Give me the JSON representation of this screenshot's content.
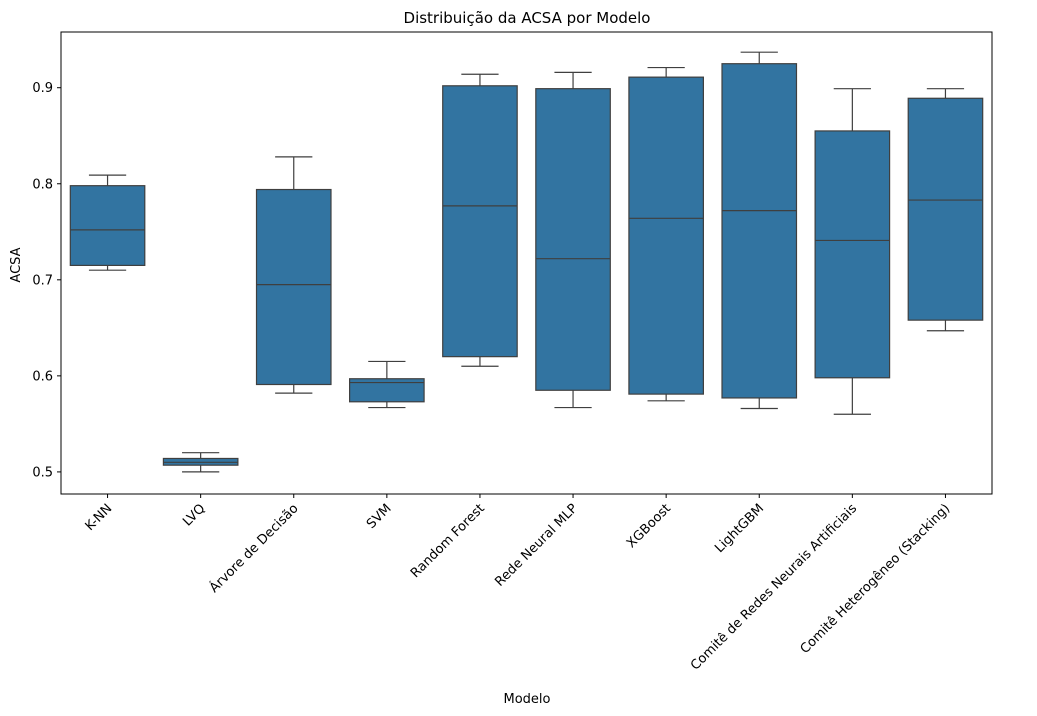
{
  "chart_data": {
    "type": "box",
    "title": "Distribuição da ACSA por Modelo",
    "xlabel": "Modelo",
    "ylabel": "ACSA",
    "ylim": [
      0.477,
      0.958
    ],
    "yticks": [
      0.5,
      0.6,
      0.7,
      0.8,
      0.9
    ],
    "ytick_labels": [
      "0.5",
      "0.6",
      "0.7",
      "0.8",
      "0.9"
    ],
    "grid": false,
    "box_color": "#3274a1",
    "line_color": "#3f3f3f",
    "categories": [
      "K-NN",
      "LVQ",
      "Árvore de Decisão",
      "SVM",
      "Random Forest",
      "Rede Neural MLP",
      "XGBoost",
      "LightGBM",
      "Comitê de Redes Neurais Artificiais",
      "Comitê Heterogêneo (Stacking)"
    ],
    "boxes": [
      {
        "whisker_low": 0.71,
        "q1": 0.715,
        "median": 0.752,
        "q3": 0.798,
        "whisker_high": 0.809
      },
      {
        "whisker_low": 0.5,
        "q1": 0.507,
        "median": 0.51,
        "q3": 0.514,
        "whisker_high": 0.52
      },
      {
        "whisker_low": 0.582,
        "q1": 0.591,
        "median": 0.695,
        "q3": 0.794,
        "whisker_high": 0.828
      },
      {
        "whisker_low": 0.567,
        "q1": 0.573,
        "median": 0.593,
        "q3": 0.597,
        "whisker_high": 0.615
      },
      {
        "whisker_low": 0.61,
        "q1": 0.62,
        "median": 0.777,
        "q3": 0.902,
        "whisker_high": 0.914
      },
      {
        "whisker_low": 0.567,
        "q1": 0.585,
        "median": 0.722,
        "q3": 0.899,
        "whisker_high": 0.916
      },
      {
        "whisker_low": 0.574,
        "q1": 0.581,
        "median": 0.764,
        "q3": 0.911,
        "whisker_high": 0.921
      },
      {
        "whisker_low": 0.566,
        "q1": 0.577,
        "median": 0.772,
        "q3": 0.925,
        "whisker_high": 0.937
      },
      {
        "whisker_low": 0.56,
        "q1": 0.598,
        "median": 0.741,
        "q3": 0.855,
        "whisker_high": 0.899
      },
      {
        "whisker_low": 0.647,
        "q1": 0.658,
        "median": 0.783,
        "q3": 0.889,
        "whisker_high": 0.899
      }
    ]
  }
}
